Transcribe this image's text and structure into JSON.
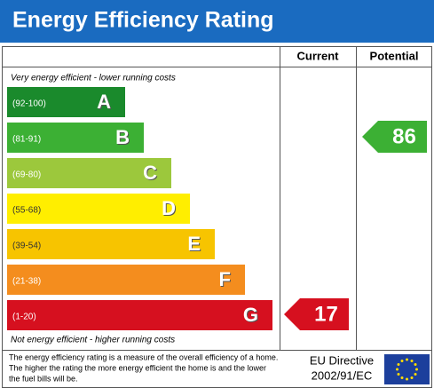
{
  "header": {
    "title": "Energy Efficiency Rating"
  },
  "columns": {
    "current": "Current",
    "potential": "Potential"
  },
  "top_note": "Very energy efficient - lower running costs",
  "bottom_note": "Not energy efficient - higher running costs",
  "bands": [
    {
      "range": "(92-100)",
      "letter": "A",
      "color": "#1a8a2c"
    },
    {
      "range": "(81-91)",
      "letter": "B",
      "color": "#3cb034"
    },
    {
      "range": "(69-80)",
      "letter": "C",
      "color": "#9cc83c"
    },
    {
      "range": "(55-68)",
      "letter": "D",
      "color": "#ffee00"
    },
    {
      "range": "(39-54)",
      "letter": "E",
      "color": "#f7c400"
    },
    {
      "range": "(21-38)",
      "letter": "F",
      "color": "#f48d1e"
    },
    {
      "range": "(1-20)",
      "letter": "G",
      "color": "#d6101f"
    }
  ],
  "ratings": {
    "current": {
      "value": 17,
      "color": "#d6101f"
    },
    "potential": {
      "value": 86,
      "color": "#3cb034"
    }
  },
  "footer": {
    "text": [
      "The energy efficiency rating is a measure of the overall efficiency of a home.",
      "The higher the rating the more energy efficient the home is and the lower",
      "the fuel bills will be."
    ],
    "directive": [
      "EU Directive",
      "2002/91/EC"
    ]
  }
}
